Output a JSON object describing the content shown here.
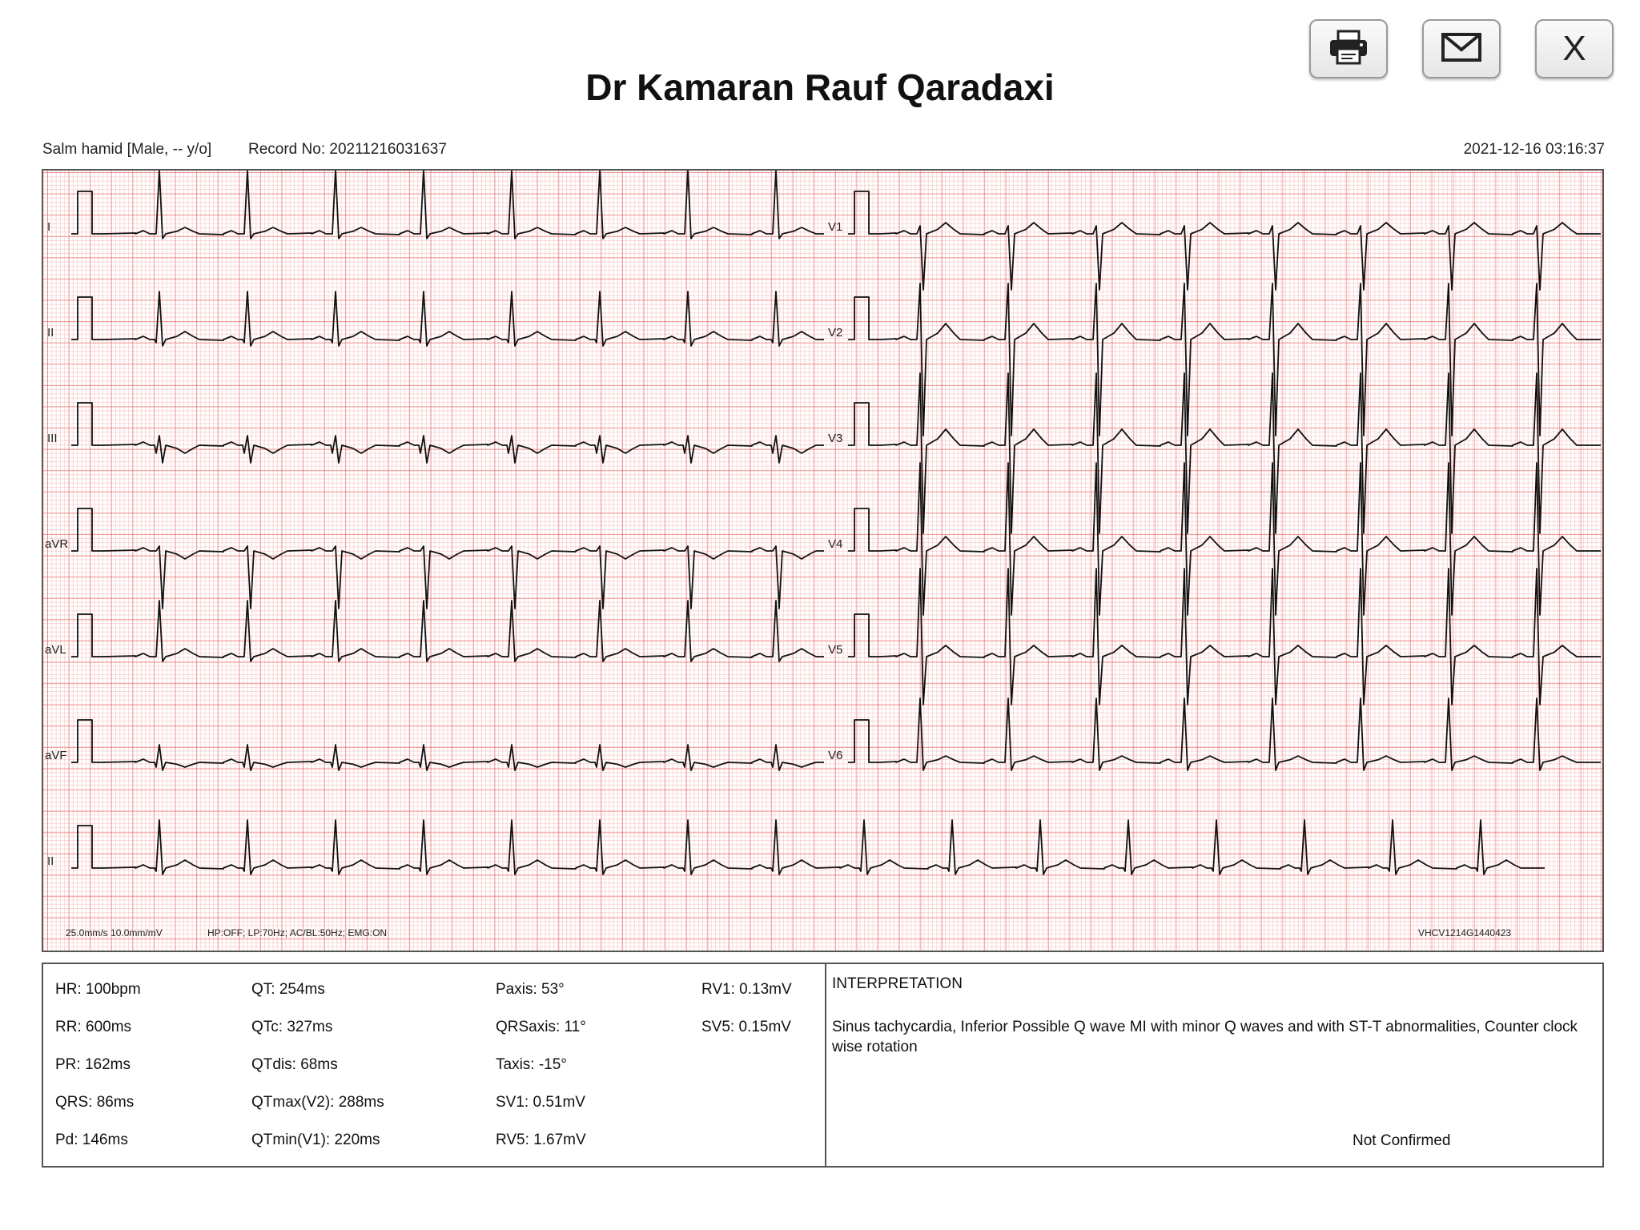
{
  "toolbar": {
    "print_icon": "printer-icon",
    "email_icon": "envelope-icon",
    "close_label": "X"
  },
  "header": {
    "title": "Dr Kamaran Rauf Qaradaxi",
    "patient": "Salm hamid [Male, -- y/o]",
    "record_no": "Record No: 20211216031637",
    "datetime": "2021-12-16 03:16:37"
  },
  "ecg": {
    "left_leads": [
      "I",
      "II",
      "III",
      "aVR",
      "aVL",
      "aVF"
    ],
    "right_leads": [
      "V1",
      "V2",
      "V3",
      "V4",
      "V5",
      "V6"
    ],
    "rhythm_lead": "II",
    "settings": "25.0mm/s  10.0mm/mV",
    "filters": "HP:OFF; LP:70Hz; AC/BL:50Hz; EMG:ON",
    "device_id": "VHCV1214G1440423",
    "grid_color": "#e85a5a",
    "trace_color": "#111111"
  },
  "measurements": {
    "col1": [
      "HR: 100bpm",
      "RR: 600ms",
      "PR: 162ms",
      "QRS: 86ms",
      "Pd: 146ms"
    ],
    "col2": [
      "QT: 254ms",
      "QTc: 327ms",
      "QTdis: 68ms",
      "QTmax(V2): 288ms",
      "QTmin(V1): 220ms"
    ],
    "col3": [
      "Paxis: 53°",
      "QRSaxis: 11°",
      "Taxis: -15°",
      "SV1: 0.51mV",
      "RV5: 1.67mV"
    ],
    "col4": [
      "RV1: 0.13mV",
      "SV5: 0.15mV"
    ]
  },
  "interpretation": {
    "title": "INTERPRETATION",
    "text": "Sinus tachycardia, Inferior Possible Q wave MI with minor Q waves and with ST-T abnormalities, Counter clock wise rotation",
    "status": "Not Confirmed"
  }
}
